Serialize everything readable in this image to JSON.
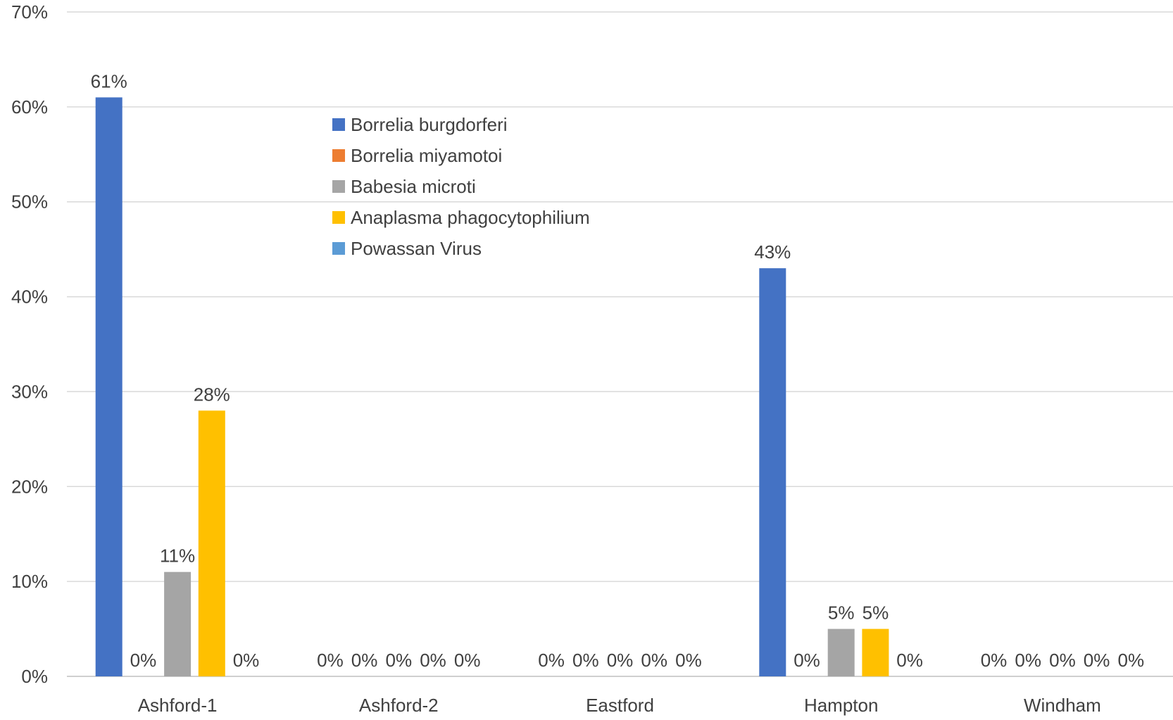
{
  "chart_data": {
    "type": "bar",
    "title": "",
    "xlabel": "",
    "ylabel": "",
    "categories": [
      "Ashford-1",
      "Ashford-2",
      "Eastford",
      "Hampton",
      "Windham"
    ],
    "series": [
      {
        "name": "Borrelia burgdorferi",
        "color": "#4472c4",
        "values": [
          61,
          0,
          0,
          43,
          0
        ]
      },
      {
        "name": "Borrelia miyamotoi",
        "color": "#ed7d31",
        "values": [
          0,
          0,
          0,
          0,
          0
        ]
      },
      {
        "name": "Babesia microti",
        "color": "#a5a5a5",
        "values": [
          11,
          0,
          0,
          5,
          0
        ]
      },
      {
        "name": "Anaplasma phagocytophilium",
        "color": "#ffc000",
        "values": [
          28,
          0,
          0,
          5,
          0
        ]
      },
      {
        "name": "Powassan Virus",
        "color": "#5b9bd5",
        "values": [
          0,
          0,
          0,
          0,
          0
        ]
      }
    ],
    "ylim": [
      0,
      70
    ],
    "yticks": [
      "0%",
      "10%",
      "20%",
      "30%",
      "40%",
      "50%",
      "60%",
      "70%"
    ],
    "value_suffix": "%",
    "grid": true,
    "legend_position": "top-center"
  }
}
